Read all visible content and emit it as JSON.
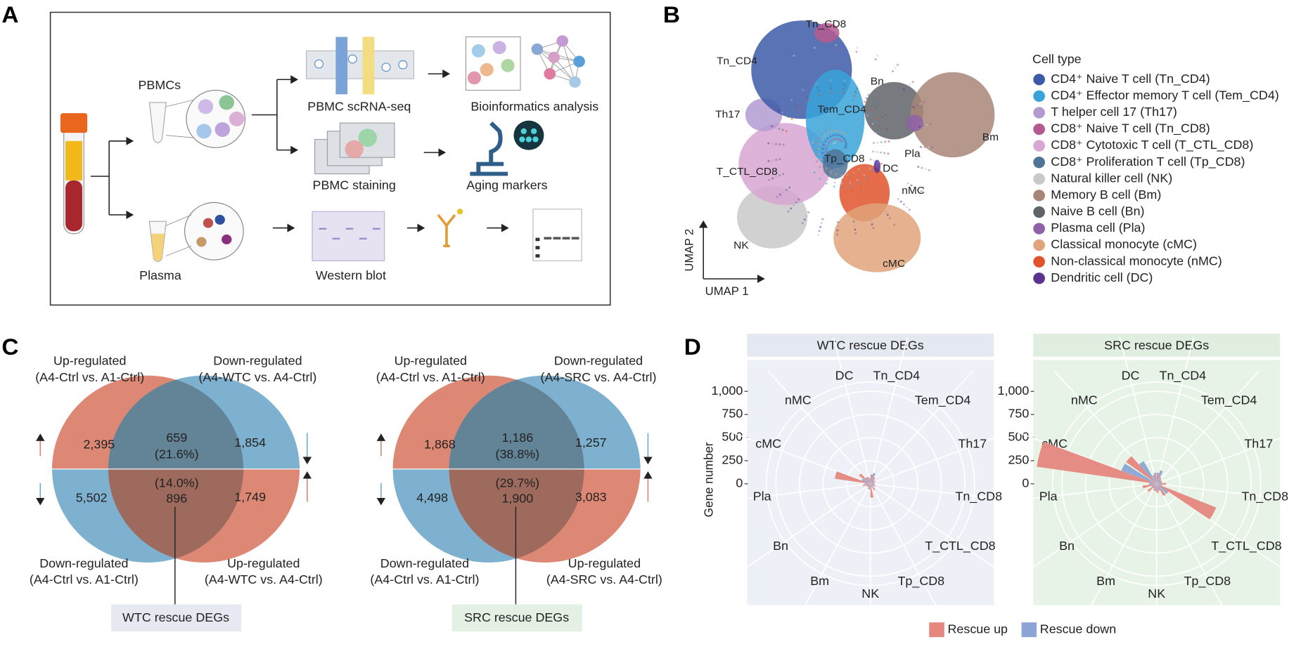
{
  "panels": {
    "A": {
      "label": "A",
      "texts": {
        "pbmcs": "PBMCs",
        "scrna": "PBMC scRNA-seq",
        "bioinfo": "Bioinformatics analysis",
        "staining": "PBMC staining",
        "aging": "Aging markers",
        "plasma": "Plasma",
        "western": "Western blot"
      }
    },
    "B": {
      "label": "B",
      "legend_title": "Cell type",
      "legend": [
        {
          "name": "CD4⁺ Naive T cell (Tn_CD4)",
          "color": "#3d5aa8"
        },
        {
          "name": "CD4⁺ Effector memory T cell (Tem_CD4)",
          "color": "#3aa3d9"
        },
        {
          "name": "T helper cell 17 (Th17)",
          "color": "#b39bd1"
        },
        {
          "name": "CD8⁺ Naive T cell (Tn_CD8)",
          "color": "#b45a8e"
        },
        {
          "name": "CD8⁺ Cytotoxic T cell (T_CTL_CD8)",
          "color": "#d7a6d2"
        },
        {
          "name": "CD8⁺ Proliferation T cell (Tp_CD8)",
          "color": "#4f7496"
        },
        {
          "name": "Natural killer cell (NK)",
          "color": "#c9c9c9"
        },
        {
          "name": "Memory B cell (Bm)",
          "color": "#a88677"
        },
        {
          "name": "Naive B cell (Bn)",
          "color": "#5f6468"
        },
        {
          "name": "Plasma cell (Pla)",
          "color": "#9060a8"
        },
        {
          "name": "Classical monocyte (cMC)",
          "color": "#e0a37a"
        },
        {
          "name": "Non-classical monocyte (nMC)",
          "color": "#e0532c"
        },
        {
          "name": "Dendritic cell (DC)",
          "color": "#5b3290"
        }
      ],
      "cluster_labels": [
        "Tn_CD8",
        "Tn_CD4",
        "Bn",
        "Tem_CD4",
        "Th17",
        "Bm",
        "Pla",
        "Tp_CD8",
        "DC",
        "T_CTL_CD8",
        "nMC",
        "NK",
        "cMC"
      ],
      "axis_labels": {
        "x": "UMAP 1",
        "y": "UMAP 2"
      }
    },
    "C": {
      "label": "C",
      "venns": [
        {
          "top_left": [
            "Up-regulated",
            "(A4-Ctrl vs. A1-Ctrl)"
          ],
          "top_right": [
            "Down-regulated",
            "(A4-WTC vs. A4-Ctrl)"
          ],
          "bottom_left": [
            "Down-regulated",
            "(A4-Ctrl vs. A1-Ctrl)"
          ],
          "bottom_right": [
            "Up-regulated",
            "(A4-WTC vs. A4-Ctrl)"
          ],
          "counts": {
            "left_up": "2,395",
            "overlap_up": "659",
            "overlap_up_pct": "(21.6%)",
            "right_up": "1,854",
            "overlap_down_pct": "(14.0%)",
            "overlap_down": "896",
            "left_down": "5,502",
            "right_down": "1,749"
          },
          "box": "WTC rescue DEGs",
          "box_color": "#e6e9f1"
        },
        {
          "top_left": [
            "Up-regulated",
            "(A4-Ctrl vs. A1-Ctrl)"
          ],
          "top_right": [
            "Down-regulated",
            "(A4-SRC vs. A4-Ctrl)"
          ],
          "bottom_left": [
            "Down-regulated",
            "(A4-Ctrl vs. A1-Ctrl)"
          ],
          "bottom_right": [
            "Up-regulated",
            "(A4-SRC vs. A4-Ctrl)"
          ],
          "counts": {
            "left_up": "1,868",
            "overlap_up": "1,186",
            "overlap_up_pct": "(38.8%)",
            "right_up": "1,257",
            "overlap_down_pct": "(29.7%)",
            "overlap_down": "1,900",
            "left_down": "4,498",
            "right_down": "3,083"
          },
          "box": "SRC rescue DEGs",
          "box_color": "#e3f0e3"
        }
      ]
    },
    "D": {
      "label": "D"
    }
  },
  "chart_data": [
    {
      "type": "polar_bar",
      "title": "WTC rescue DEGs",
      "ylabel": "Gene number",
      "background": "#edf0f6",
      "header_color": "#e4e8f0",
      "categories": [
        "Tn_CD4",
        "Tem_CD4",
        "Th17",
        "Tn_CD8",
        "T_CTL_CD8",
        "Tp_CD8",
        "NK",
        "Bm",
        "Bn",
        "Pla",
        "cMC",
        "nMC",
        "DC"
      ],
      "series": [
        {
          "name": "Rescue up",
          "color": "#e5877e",
          "values": [
            100,
            80,
            60,
            50,
            60,
            80,
            150,
            60,
            50,
            80,
            380,
            150,
            80
          ]
        },
        {
          "name": "Rescue down",
          "color": "#8aa5d6",
          "values": [
            120,
            50,
            40,
            40,
            40,
            40,
            60,
            40,
            40,
            60,
            100,
            80,
            60
          ]
        }
      ],
      "ylim": [
        0,
        1100
      ],
      "yticks": [
        0,
        250,
        500,
        750,
        {
          "value": 1000,
          "label": "1,000"
        }
      ]
    },
    {
      "type": "polar_bar",
      "title": "SRC rescue DEGs",
      "background": "#e8f3e8",
      "header_color": "#e0eee0",
      "categories": [
        "Tn_CD4",
        "Tem_CD4",
        "Th17",
        "Tn_CD8",
        "T_CTL_CD8",
        "Tp_CD8",
        "NK",
        "Bm",
        "Bn",
        "Pla",
        "cMC",
        "nMC",
        "DC"
      ],
      "series": [
        {
          "color": "#e5877e",
          "values": [
            120,
            80,
            60,
            100,
            680,
            150,
            100,
            80,
            120,
            150,
            1280,
            400,
            100
          ]
        },
        {
          "color": "#8aa5d6",
          "values": [
            150,
            60,
            60,
            60,
            150,
            80,
            80,
            60,
            60,
            80,
            400,
            280,
            120
          ]
        }
      ],
      "ylim": [
        0,
        1100
      ],
      "yticks": [
        0,
        250,
        500,
        750,
        {
          "value": 1000,
          "label": "1,000"
        }
      ]
    }
  ]
}
